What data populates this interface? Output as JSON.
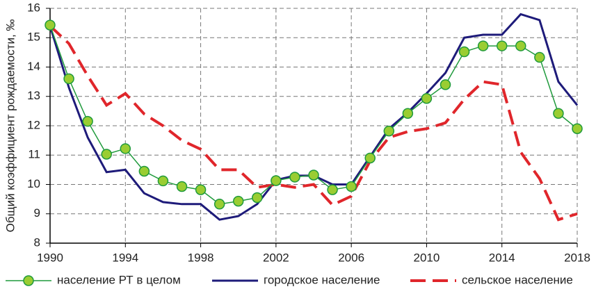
{
  "chart_data": {
    "type": "line",
    "y_label": "Общий коэффициент рождаемости, ‰",
    "x": [
      1990,
      1991,
      1992,
      1993,
      1994,
      1995,
      1996,
      1997,
      1998,
      1999,
      2000,
      2001,
      2002,
      2003,
      2004,
      2005,
      2006,
      2007,
      2008,
      2009,
      2010,
      2011,
      2012,
      2013,
      2014,
      2015,
      2016,
      2017,
      2018
    ],
    "series": [
      {
        "name": "население РТ в целом",
        "color": "#1f9a3c",
        "marker": "circle",
        "marker_fill": "#9acd32",
        "line_style": "solid",
        "values": [
          15.43,
          13.6,
          12.15,
          11.03,
          11.22,
          10.45,
          10.12,
          9.93,
          9.82,
          9.33,
          9.43,
          9.55,
          10.13,
          10.25,
          10.32,
          9.82,
          9.93,
          10.9,
          11.82,
          12.42,
          12.93,
          13.4,
          14.52,
          14.72,
          14.72,
          14.72,
          14.33,
          12.42,
          11.9
        ]
      },
      {
        "name": "городское население",
        "color": "#1e1b7a",
        "line_style": "solid",
        "values": [
          15.4,
          13.3,
          11.6,
          10.42,
          10.5,
          9.7,
          9.4,
          9.33,
          9.33,
          8.8,
          8.92,
          9.33,
          10.15,
          10.3,
          10.3,
          10.0,
          10.0,
          10.95,
          11.9,
          12.45,
          13.1,
          13.8,
          15.0,
          15.1,
          15.1,
          15.8,
          15.6,
          13.5,
          12.7
        ]
      },
      {
        "name": "сельское население",
        "color": "#e0262b",
        "line_style": "dashed",
        "values": [
          15.4,
          14.8,
          13.7,
          12.7,
          13.1,
          12.4,
          12.0,
          11.5,
          11.2,
          10.5,
          10.5,
          9.9,
          10.0,
          9.9,
          10.0,
          9.3,
          9.6,
          10.8,
          11.6,
          11.8,
          11.9,
          12.1,
          12.9,
          13.5,
          13.4,
          11.1,
          10.2,
          8.8,
          9.0
        ]
      }
    ],
    "xlim": [
      1990,
      2018
    ],
    "xticks": [
      1990,
      1994,
      1998,
      2002,
      2006,
      2010,
      2014,
      2018
    ],
    "ylim": [
      8,
      16
    ],
    "yticks": [
      8,
      9,
      10,
      11,
      12,
      13,
      14,
      15,
      16
    ],
    "grid": true,
    "legend": "bottom"
  }
}
